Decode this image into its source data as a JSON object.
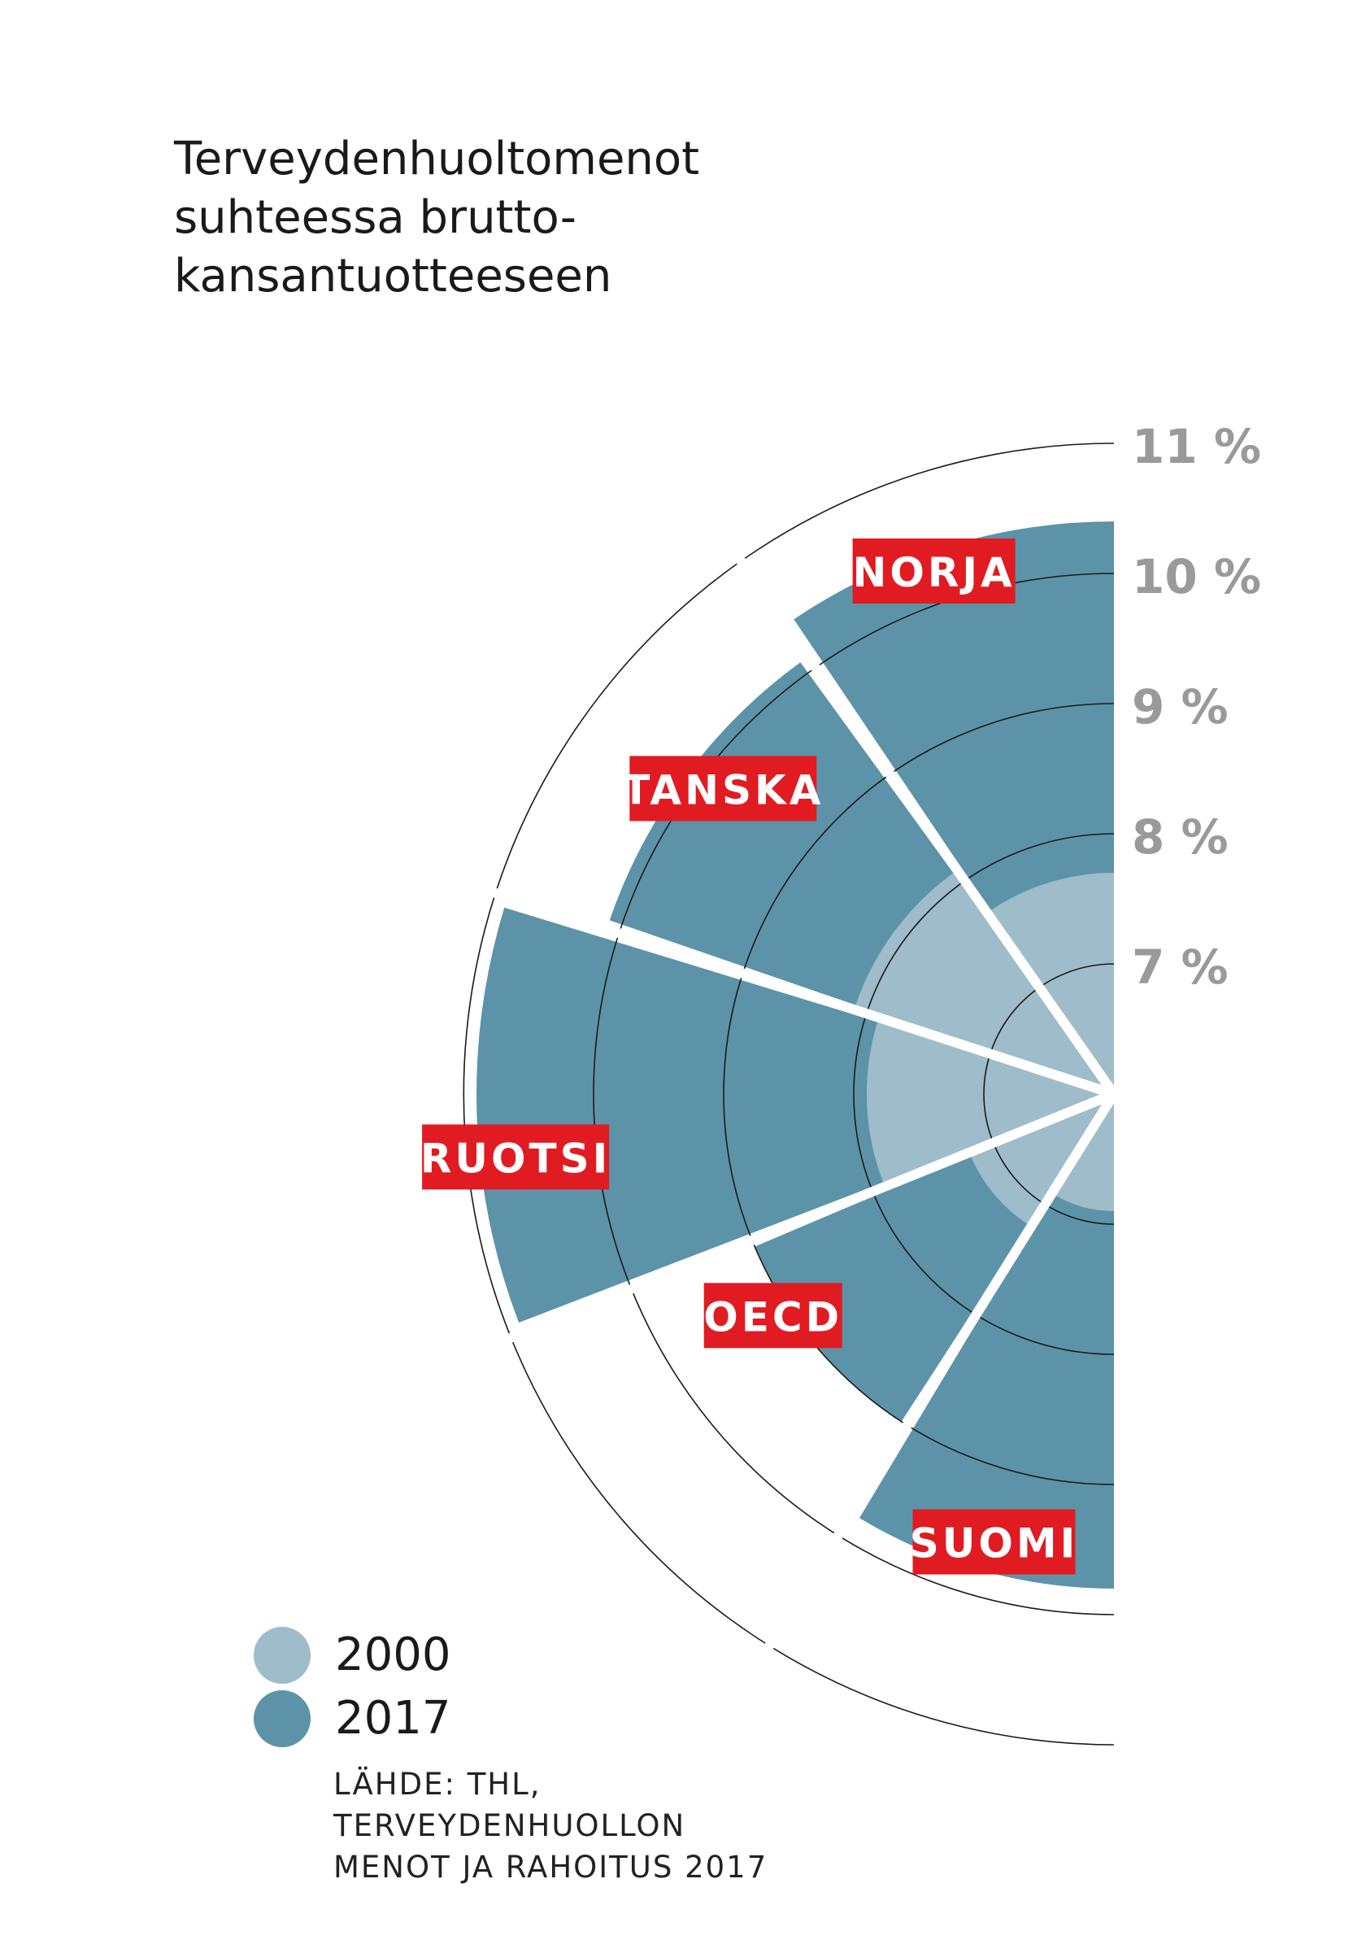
{
  "title_lines": [
    "Terveydenhuoltomenot",
    "suhteessa brutto-",
    "kansantuotteeseen"
  ],
  "colors": {
    "year_2000": "#9fbcca",
    "year_2017": "#5d93a8",
    "label_bg": "#e11b22",
    "label_text": "#ffffff",
    "tick_text": "#9a9a9a",
    "text": "#1a1a1a"
  },
  "legend": [
    {
      "label": "2000",
      "color": "#9fbcca"
    },
    {
      "label": "2017",
      "color": "#5d93a8"
    }
  ],
  "source_lines": [
    "LÄHDE: THL,",
    "TERVEYDENHUOLLON",
    "MENOT JA RAHOITUS 2017"
  ],
  "chart_data": {
    "type": "polar-area",
    "unit": "%",
    "ticks": [
      7,
      8,
      9,
      10,
      11
    ],
    "tick_labels": [
      "7 %",
      "8 %",
      "9 %",
      "10 %",
      "11 %"
    ],
    "series": [
      {
        "name": "2000",
        "values": [
          7.7,
          8.1,
          7.9,
          7.2,
          6.9
        ]
      },
      {
        "name": "2017",
        "values": [
          10.4,
          10.1,
          10.9,
          9.0,
          9.8
        ]
      }
    ],
    "categories": [
      "NORJA",
      "TANSKA",
      "RUOTSI",
      "OECD",
      "SUOMI"
    ]
  }
}
